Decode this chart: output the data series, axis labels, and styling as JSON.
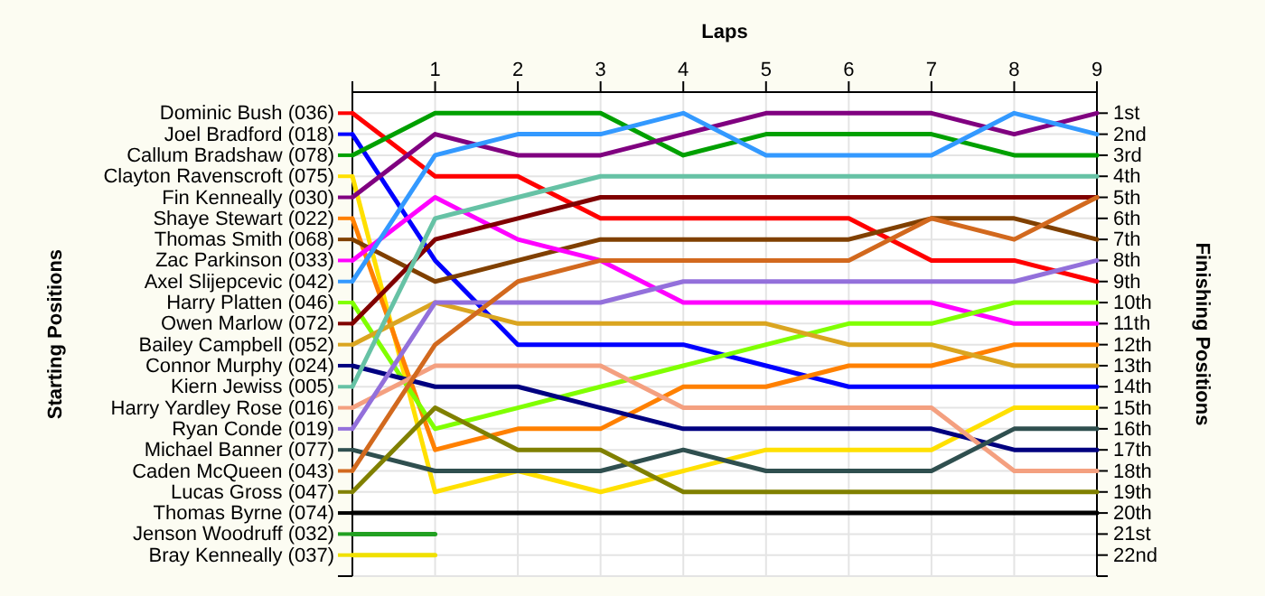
{
  "chart_data": {
    "type": "line",
    "xlabel": "Laps",
    "legend_title": "Starting Positions",
    "legend": "left",
    "y2label": "Finishing Positions",
    "x": [
      0,
      1,
      2,
      3,
      4,
      5,
      6,
      7,
      8,
      9
    ],
    "xlim": [
      0,
      9
    ],
    "xticks": [
      {
        "value": 0,
        "label": null
      },
      1,
      2,
      3,
      4,
      5,
      6,
      7,
      8,
      9
    ],
    "y2lim": [
      23,
      0
    ],
    "y2ticks": [
      {
        "value": 1,
        "label": "1st"
      },
      {
        "value": 2,
        "label": "2nd"
      },
      {
        "value": 3,
        "label": "3rd"
      },
      {
        "value": 4,
        "label": "4th"
      },
      {
        "value": 5,
        "label": "5th"
      },
      {
        "value": 6,
        "label": "6th"
      },
      {
        "value": 7,
        "label": "7th"
      },
      {
        "value": 8,
        "label": "8th"
      },
      {
        "value": 9,
        "label": "9th"
      },
      {
        "value": 10,
        "label": "10th"
      },
      {
        "value": 11,
        "label": "11th"
      },
      {
        "value": 12,
        "label": "12th"
      },
      {
        "value": 13,
        "label": "13th"
      },
      {
        "value": 14,
        "label": "14th"
      },
      {
        "value": 15,
        "label": "15th"
      },
      {
        "value": 16,
        "label": "16th"
      },
      {
        "value": 17,
        "label": "17th"
      },
      {
        "value": 18,
        "label": "18th"
      },
      {
        "value": 19,
        "label": "19th"
      },
      {
        "value": 20,
        "label": "20th"
      },
      {
        "value": 21,
        "label": "21st"
      },
      {
        "value": 22,
        "label": "22nd"
      },
      {
        "value": 23,
        "label": null
      }
    ],
    "grid": true,
    "marker": "none",
    "line_style": "solid",
    "series": [
      {
        "name": "Dominic Bush (036)",
        "axis": "y2",
        "color": "#ff0000",
        "values": [
          1,
          4,
          4,
          6,
          6,
          6,
          6,
          8,
          8,
          9
        ]
      },
      {
        "name": "Joel Bradford (018)",
        "axis": "y2",
        "color": "#0000ff",
        "values": [
          2,
          8,
          12,
          12,
          12,
          13,
          14,
          14,
          14,
          14
        ]
      },
      {
        "name": "Callum Bradshaw (078)",
        "axis": "y2",
        "color": "#00a000",
        "values": [
          3,
          1,
          1,
          1,
          3,
          2,
          2,
          2,
          3,
          3
        ]
      },
      {
        "name": "Clayton Ravenscroft (075)",
        "axis": "y2",
        "color": "#ffe000",
        "values": [
          4,
          19,
          18,
          19,
          18,
          17,
          17,
          17,
          15,
          15
        ]
      },
      {
        "name": "Fin Kenneally (030)",
        "axis": "y2",
        "color": "#800080",
        "values": [
          5,
          2,
          3,
          3,
          2,
          1,
          1,
          1,
          2,
          1
        ]
      },
      {
        "name": "Shaye Stewart (022)",
        "axis": "y2",
        "color": "#ff8000",
        "values": [
          6,
          17,
          16,
          16,
          14,
          14,
          13,
          13,
          12,
          12
        ]
      },
      {
        "name": "Thomas Smith (068)",
        "axis": "y2",
        "color": "#804000",
        "values": [
          7,
          9,
          8,
          7,
          7,
          7,
          7,
          6,
          6,
          7
        ]
      },
      {
        "name": "Zac Parkinson (033)",
        "axis": "y2",
        "color": "#ff00ff",
        "values": [
          8,
          5,
          7,
          8,
          10,
          10,
          10,
          10,
          11,
          11
        ]
      },
      {
        "name": "Axel Slijepcevic (042)",
        "axis": "y2",
        "color": "#3399ff",
        "values": [
          9,
          3,
          2,
          2,
          1,
          3,
          3,
          3,
          1,
          2
        ]
      },
      {
        "name": "Harry Platten (046)",
        "axis": "y2",
        "color": "#80ff00",
        "values": [
          10,
          16,
          15,
          14,
          13,
          12,
          11,
          11,
          10,
          10
        ]
      },
      {
        "name": "Owen Marlow (072)",
        "axis": "y2",
        "color": "#800000",
        "values": [
          11,
          7,
          6,
          5,
          5,
          5,
          5,
          5,
          5,
          5
        ]
      },
      {
        "name": "Bailey Campbell (052)",
        "axis": "y2",
        "color": "#daa520",
        "values": [
          12,
          10,
          11,
          11,
          11,
          11,
          12,
          12,
          13,
          13
        ]
      },
      {
        "name": "Connor Murphy (024)",
        "axis": "y2",
        "color": "#000080",
        "values": [
          13,
          14,
          14,
          15,
          16,
          16,
          16,
          16,
          17,
          17
        ]
      },
      {
        "name": "Kiern Jewiss (005)",
        "axis": "y2",
        "color": "#66c2a5",
        "values": [
          14,
          6,
          5,
          4,
          4,
          4,
          4,
          4,
          4,
          4
        ]
      },
      {
        "name": "Harry Yardley Rose (016)",
        "axis": "y2",
        "color": "#f4a080",
        "values": [
          15,
          13,
          13,
          13,
          15,
          15,
          15,
          15,
          18,
          18
        ]
      },
      {
        "name": "Ryan Conde (019)",
        "axis": "y2",
        "color": "#9370db",
        "values": [
          16,
          10,
          10,
          10,
          9,
          9,
          9,
          9,
          9,
          8
        ]
      },
      {
        "name": "Michael Banner (077)",
        "axis": "y2",
        "color": "#2f4f4f",
        "values": [
          17,
          18,
          18,
          18,
          17,
          18,
          18,
          18,
          16,
          16
        ]
      },
      {
        "name": "Caden McQueen (043)",
        "axis": "y2",
        "color": "#d2691e",
        "values": [
          18,
          12,
          9,
          8,
          8,
          8,
          8,
          6,
          7,
          5
        ]
      },
      {
        "name": "Lucas Gross (047)",
        "axis": "y2",
        "color": "#808000",
        "values": [
          19,
          15,
          17,
          17,
          19,
          19,
          19,
          19,
          19,
          19
        ]
      },
      {
        "name": "Thomas Byrne (074)",
        "axis": "y2",
        "color": "#000000",
        "values": [
          20,
          20,
          20,
          20,
          20,
          20,
          20,
          20,
          20,
          20
        ]
      },
      {
        "name": "Jenson Woodruff (032)",
        "axis": "y2",
        "color": "#22a022",
        "values": [
          21,
          21,
          null,
          null,
          null,
          null,
          null,
          null,
          null,
          null
        ]
      },
      {
        "name": "Bray Kenneally (037)",
        "axis": "y2",
        "color": "#f0e000",
        "values": [
          22,
          22,
          null,
          null,
          null,
          null,
          null,
          null,
          null,
          null
        ]
      }
    ]
  }
}
